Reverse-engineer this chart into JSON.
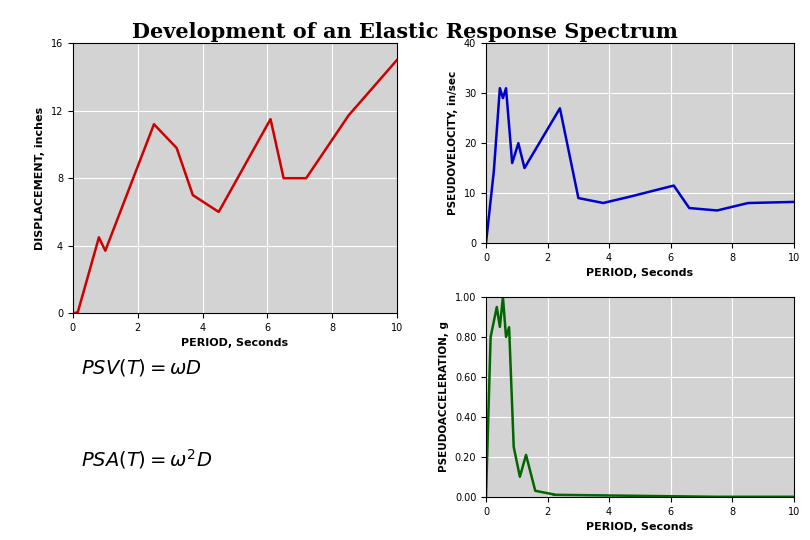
{
  "title": "Development of an Elastic Response Spectrum",
  "title_fontsize": 15,
  "background_color": "#ffffff",
  "plot_bg_color": "#d3d3d3",
  "grid_color": "#ffffff",
  "disp_color": "#cc0000",
  "vel_color": "#0000cc",
  "accel_color": "#006600",
  "disp_xlabel": "PERIOD, Seconds",
  "disp_ylabel": "DISPLACEMENT, inches",
  "disp_xlim": [
    0,
    10
  ],
  "disp_ylim": [
    0,
    16
  ],
  "disp_yticks": [
    0,
    4,
    8,
    12,
    16
  ],
  "disp_xticks": [
    0,
    2,
    4,
    6,
    8,
    10
  ],
  "vel_xlabel": "PERIOD, Seconds",
  "vel_ylabel": "PSEUDOVELOCITY, in/sec",
  "vel_xlim": [
    0,
    10
  ],
  "vel_ylim": [
    0,
    40
  ],
  "vel_yticks": [
    0,
    10,
    20,
    30,
    40
  ],
  "vel_xticks": [
    0,
    2,
    4,
    6,
    8,
    10
  ],
  "accel_xlabel": "PERIOD, Seconds",
  "accel_ylabel": "PSEUDOACCELERATION, g",
  "accel_xlim": [
    0,
    10
  ],
  "accel_ylim": [
    0.0,
    1.0
  ],
  "accel_yticks": [
    0.0,
    0.2,
    0.4,
    0.6,
    0.8,
    1.0
  ],
  "accel_xticks": [
    0,
    2,
    4,
    6,
    8,
    10
  ]
}
